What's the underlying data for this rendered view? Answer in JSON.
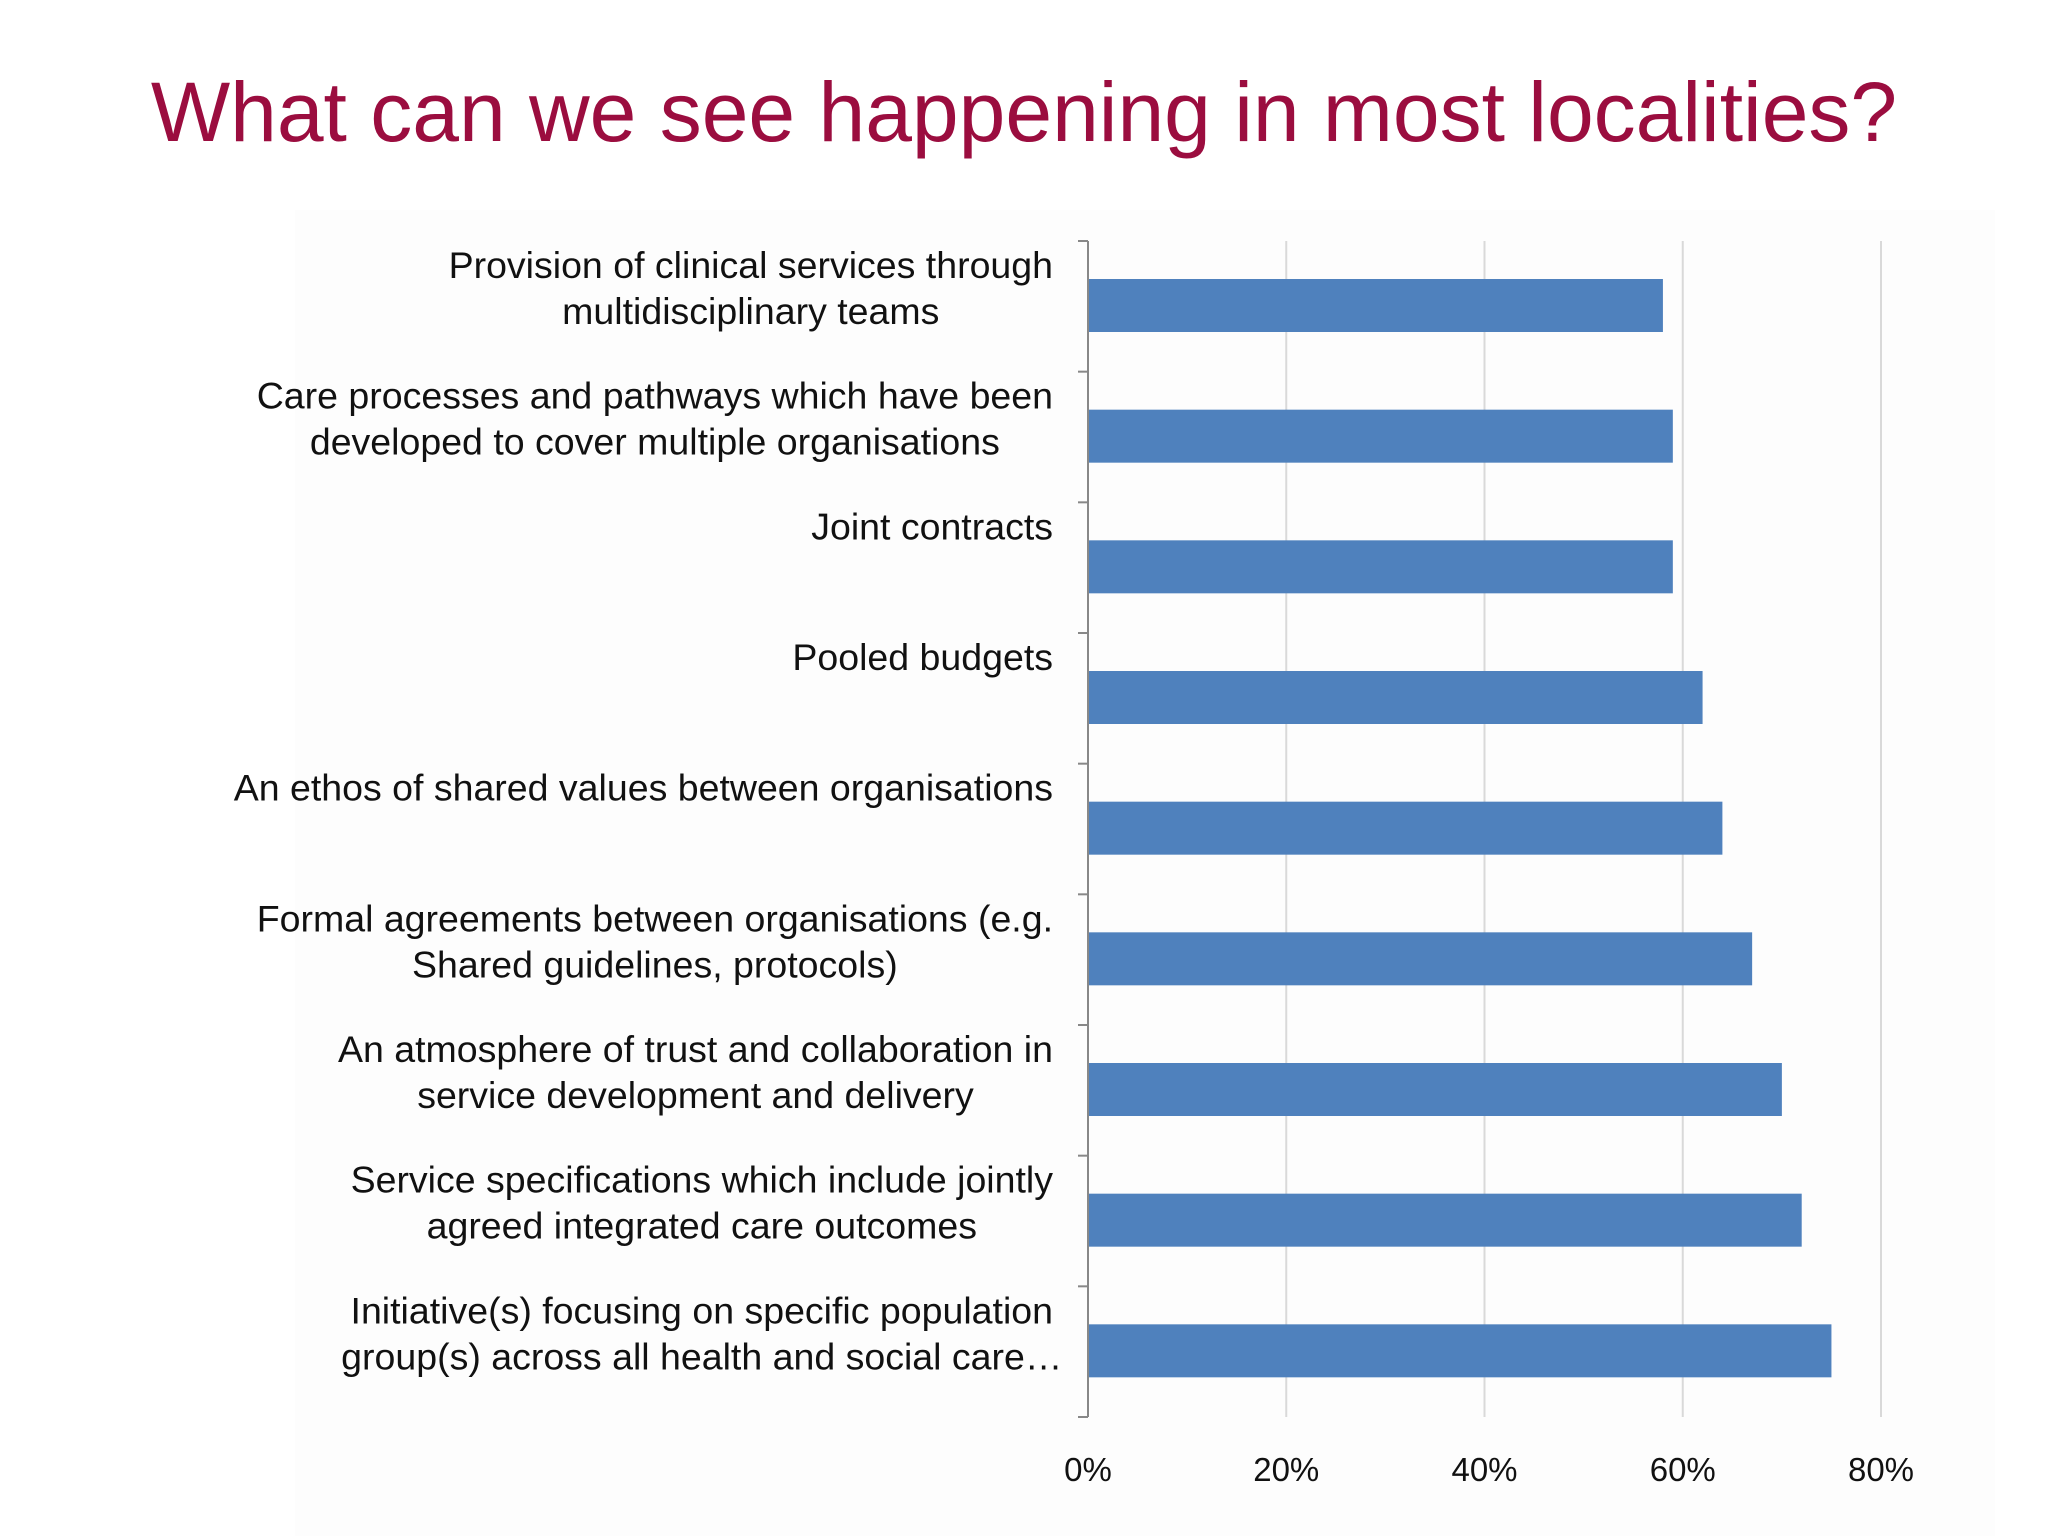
{
  "slide": {
    "title": "What can we see happening in most localities?",
    "title_color": "#9b0d3f"
  },
  "chart_data": {
    "type": "bar",
    "orientation": "horizontal",
    "title": "What can we see happening in most localities?",
    "xlabel": "",
    "ylabel": "",
    "categories": [
      [
        "Provision of clinical services through",
        "multidisciplinary teams"
      ],
      [
        "Care processes and pathways which have been",
        "developed to cover multiple organisations"
      ],
      [
        "Joint contracts"
      ],
      [
        "Pooled budgets"
      ],
      [
        "An ethos of shared values between organisations"
      ],
      [
        "Formal agreements between organisations (e.g.",
        "Shared guidelines, protocols)"
      ],
      [
        "An atmosphere of trust and collaboration in",
        "service development and delivery"
      ],
      [
        "Service specifications which include jointly",
        "agreed integrated care outcomes"
      ],
      [
        "Initiative(s) focusing on specific population",
        "group(s) across all health and social care…"
      ]
    ],
    "values": [
      58,
      59,
      59,
      62,
      64,
      67,
      70,
      72,
      75
    ],
    "xlim": [
      0,
      80
    ],
    "ticks": [
      0,
      20,
      40,
      60,
      80
    ],
    "tick_labels": [
      "0%",
      "20%",
      "40%",
      "60%",
      "80%"
    ],
    "grid": true,
    "legend": "none",
    "bar_color": "#4f81bd",
    "grid_color": "#d9d9d9",
    "axis_color": "#888888"
  }
}
